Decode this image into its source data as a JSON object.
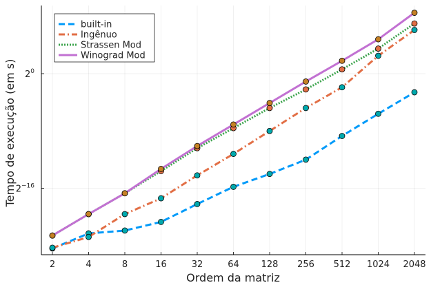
{
  "chart_data": {
    "type": "line",
    "xlabel": "Ordem da matriz",
    "ylabel": "Tempo de execução (em s)",
    "x_scale": "log2",
    "y_scale": "log2",
    "categories": [
      2,
      4,
      8,
      16,
      32,
      64,
      128,
      256,
      512,
      1024,
      2048
    ],
    "x_tick_labels": [
      "2",
      "4",
      "8",
      "16",
      "32",
      "64",
      "128",
      "256",
      "512",
      "1024",
      "2048"
    ],
    "y_ticks": [
      {
        "base": "2",
        "exp": "0",
        "value_log2": 0
      },
      {
        "base": "2",
        "exp": "−16",
        "value_log2": -16
      }
    ],
    "ylim_log2": [
      -25.0,
      9.0
    ],
    "legend_position": "top-left",
    "grid": true,
    "series": [
      {
        "name": "built-in",
        "color": "#009af9",
        "dash": "dashed",
        "marker_color": "#00a9ad",
        "log2_values": [
          -24.4,
          -22.3,
          -21.9,
          -20.7,
          -18.2,
          -15.8,
          -14.0,
          -12.0,
          -8.7,
          -5.6,
          -2.6
        ]
      },
      {
        "name": "Ingênuo",
        "color": "#e26f46",
        "dash": "dashdot",
        "marker_color": "#00a9ad",
        "log2_values": [
          -24.3,
          -22.8,
          -19.6,
          -17.4,
          -14.2,
          -11.2,
          -8.0,
          -4.8,
          -1.9,
          2.5,
          6.1
        ]
      },
      {
        "name": "Strassen Mod",
        "color": "#3da44d",
        "dash": "dotted",
        "marker_color": "#e26f46",
        "log2_values": [
          -22.6,
          -19.6,
          -16.7,
          -13.6,
          -10.4,
          -7.6,
          -4.8,
          -2.2,
          0.6,
          3.5,
          7.0
        ]
      },
      {
        "name": "Winograd Mod",
        "color": "#c271d2",
        "dash": "solid",
        "marker_color": "#c68125",
        "log2_values": [
          -22.6,
          -19.6,
          -16.7,
          -13.3,
          -10.1,
          -7.1,
          -4.1,
          -1.1,
          1.8,
          4.8,
          8.5
        ]
      }
    ]
  }
}
